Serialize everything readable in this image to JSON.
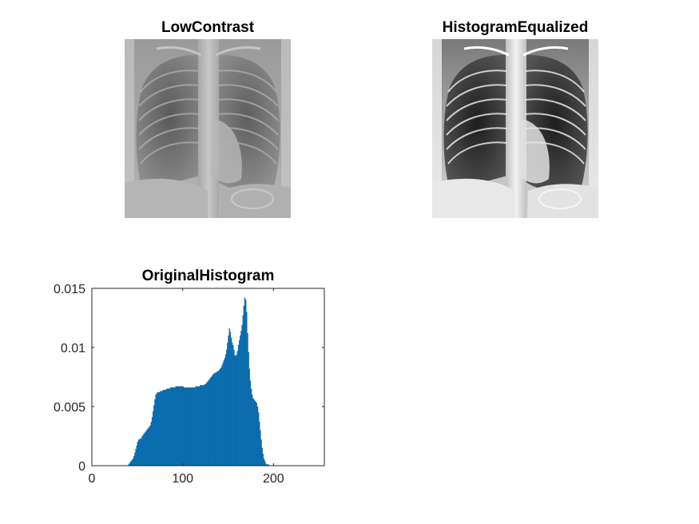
{
  "figure": {
    "panels": [
      {
        "title": "LowContrast"
      },
      {
        "title": "HistogramEqualized"
      }
    ]
  },
  "chart_data": {
    "type": "bar",
    "title": "OriginalHistogram",
    "xlabel": "",
    "ylabel": "",
    "xlim": [
      0,
      256
    ],
    "ylim": [
      0,
      0.015
    ],
    "xticks": [
      "0",
      "100",
      "200"
    ],
    "yticks": [
      "0",
      "0.005",
      "0.01",
      "0.015"
    ],
    "bar_color": "#0072BD",
    "grid": false,
    "x_start": 40,
    "values": [
      0.0001,
      0.0002,
      0.0003,
      0.0004,
      0.0005,
      0.0006,
      0.0008,
      0.0011,
      0.0014,
      0.0017,
      0.002,
      0.0022,
      0.0022,
      0.0023,
      0.0023,
      0.0025,
      0.0026,
      0.0027,
      0.0028,
      0.0029,
      0.003,
      0.0031,
      0.0032,
      0.0033,
      0.0034,
      0.0037,
      0.0041,
      0.0046,
      0.0051,
      0.0056,
      0.006,
      0.0061,
      0.0062,
      0.0062,
      0.0062,
      0.0063,
      0.0063,
      0.0063,
      0.0064,
      0.0064,
      0.0064,
      0.0064,
      0.0065,
      0.0065,
      0.0065,
      0.0065,
      0.0066,
      0.0066,
      0.0066,
      0.0066,
      0.0066,
      0.0066,
      0.0067,
      0.0067,
      0.0067,
      0.0067,
      0.0067,
      0.0067,
      0.0067,
      0.0067,
      0.0067,
      0.0066,
      0.0066,
      0.0066,
      0.0066,
      0.0066,
      0.0066,
      0.0066,
      0.0066,
      0.0066,
      0.0066,
      0.0066,
      0.0066,
      0.0066,
      0.0067,
      0.0067,
      0.0067,
      0.0067,
      0.0067,
      0.0068,
      0.0068,
      0.0068,
      0.0068,
      0.0068,
      0.0069,
      0.0069,
      0.007,
      0.0071,
      0.0072,
      0.0073,
      0.0074,
      0.0075,
      0.0076,
      0.0077,
      0.0078,
      0.0078,
      0.0079,
      0.0079,
      0.008,
      0.008,
      0.0081,
      0.0082,
      0.0083,
      0.0085,
      0.0087,
      0.0089,
      0.0091,
      0.0094,
      0.0098,
      0.0104,
      0.011,
      0.0116,
      0.0113,
      0.0108,
      0.0104,
      0.0102,
      0.0098,
      0.0093,
      0.0093,
      0.0094,
      0.0097,
      0.0102,
      0.0106,
      0.011,
      0.0114,
      0.0119,
      0.0127,
      0.0135,
      0.0142,
      0.014,
      0.013,
      0.0112,
      0.0096,
      0.0082,
      0.0072,
      0.0065,
      0.006,
      0.0057,
      0.0056,
      0.0055,
      0.0054,
      0.0053,
      0.005,
      0.0045,
      0.0037,
      0.003,
      0.0022,
      0.0015,
      0.001,
      0.0006,
      0.0004,
      0.0002,
      0.0001,
      0.0001,
      0.0001
    ]
  }
}
